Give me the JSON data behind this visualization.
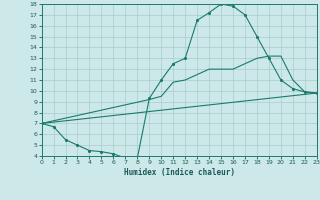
{
  "xlabel": "Humidex (Indice chaleur)",
  "bg_color": "#cde8e8",
  "line_color": "#1a7a6e",
  "grid_color": "#aacccc",
  "xlim": [
    0,
    23
  ],
  "ylim": [
    4,
    18
  ],
  "xticks": [
    0,
    1,
    2,
    3,
    4,
    5,
    6,
    7,
    8,
    9,
    10,
    11,
    12,
    13,
    14,
    15,
    16,
    17,
    18,
    19,
    20,
    21,
    22,
    23
  ],
  "yticks": [
    4,
    5,
    6,
    7,
    8,
    9,
    10,
    11,
    12,
    13,
    14,
    15,
    16,
    17,
    18
  ],
  "curve1_x": [
    0,
    1,
    2,
    3,
    4,
    5,
    6,
    7,
    8,
    9,
    10,
    11,
    12,
    13,
    14,
    15,
    16,
    17,
    18,
    19,
    20,
    21,
    22,
    23
  ],
  "curve1_y": [
    7.0,
    6.7,
    5.5,
    5.0,
    4.5,
    4.4,
    4.2,
    3.8,
    3.8,
    9.3,
    11.0,
    12.5,
    13.0,
    16.5,
    17.2,
    18.0,
    17.8,
    17.0,
    15.0,
    13.0,
    11.0,
    10.2,
    9.9,
    9.8
  ],
  "curve2_x": [
    0,
    9,
    10,
    11,
    12,
    13,
    14,
    15,
    16,
    17,
    18,
    19,
    20,
    21,
    22,
    23
  ],
  "curve2_y": [
    7.0,
    9.2,
    9.5,
    10.8,
    11.0,
    11.5,
    12.0,
    12.0,
    12.0,
    12.5,
    13.0,
    13.2,
    13.2,
    11.0,
    9.9,
    9.8
  ],
  "line3_x": [
    0,
    23
  ],
  "line3_y": [
    7.0,
    9.8
  ]
}
